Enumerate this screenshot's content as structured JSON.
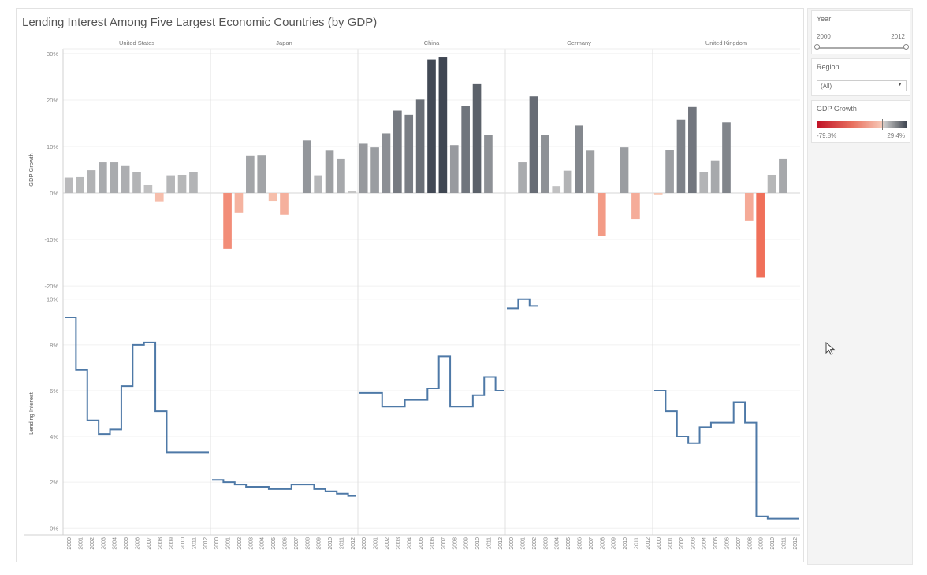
{
  "dashboard": {
    "title": "Lending Interest Among Five Largest Economic Countries (by GDP)"
  },
  "filters": {
    "year": {
      "label": "Year",
      "min_label": "2000",
      "max_label": "2012"
    },
    "region": {
      "label": "Region",
      "value": "(All)"
    },
    "gdp_legend": {
      "label": "GDP Growth",
      "min_label": "-79.8%",
      "max_label": "29.4%"
    }
  },
  "colors": {
    "line": "#4e79a7",
    "positive_low": "#c8c8c8",
    "positive_high": "#3f4652",
    "negative_low": "#f7c7b5",
    "negative_high": "#f0705a"
  },
  "chart_data": {
    "type": "bar",
    "title": "Lending Interest Among Five Largest Economic Countries (by GDP)",
    "columns": [
      "United States",
      "Japan",
      "China",
      "Germany",
      "United Kingdom"
    ],
    "years": [
      "2000",
      "2001",
      "2002",
      "2003",
      "2004",
      "2005",
      "2006",
      "2007",
      "2008",
      "2009",
      "2010",
      "2011",
      "2012"
    ],
    "gdp_growth": {
      "ylabel": "GDP Growth",
      "ylim": [
        -21,
        31
      ],
      "ticks": [
        30,
        20,
        10,
        0,
        -10,
        -20
      ],
      "tick_labels": [
        "30%",
        "20%",
        "10%",
        "0%",
        "-10%",
        "-20%"
      ],
      "series": [
        {
          "name": "United States",
          "values": [
            3.3,
            3.4,
            4.9,
            6.6,
            6.6,
            5.8,
            4.5,
            1.7,
            -1.8,
            3.8,
            3.9,
            4.5,
            null
          ]
        },
        {
          "name": "Japan",
          "values": [
            null,
            -12.0,
            -4.2,
            8.0,
            8.1,
            -1.7,
            -4.7,
            null,
            11.3,
            3.8,
            9.1,
            7.3,
            0.4
          ]
        },
        {
          "name": "China",
          "values": [
            10.6,
            9.8,
            12.8,
            17.7,
            16.8,
            20.1,
            28.7,
            29.3,
            10.3,
            18.8,
            23.4,
            12.4,
            null
          ]
        },
        {
          "name": "Germany",
          "values": [
            null,
            6.6,
            20.8,
            12.4,
            1.5,
            4.8,
            14.5,
            9.1,
            -9.2,
            null,
            9.8,
            -5.6,
            null
          ]
        },
        {
          "name": "United Kingdom",
          "values": [
            -0.3,
            9.2,
            15.8,
            18.5,
            4.5,
            7.0,
            15.2,
            null,
            -5.9,
            -18.2,
            3.9,
            7.3,
            null
          ]
        }
      ]
    },
    "lending_interest": {
      "type": "line",
      "ylabel": "Lending Interest",
      "ylim": [
        -0.3,
        10.3
      ],
      "ticks": [
        10,
        8,
        6,
        4,
        2,
        0
      ],
      "tick_labels": [
        "10%",
        "8%",
        "6%",
        "4%",
        "2%",
        "0%"
      ],
      "series": [
        {
          "name": "United States",
          "values": [
            9.2,
            6.9,
            4.7,
            4.1,
            4.3,
            6.2,
            8.0,
            8.1,
            5.1,
            3.3,
            3.3,
            3.3,
            3.3
          ]
        },
        {
          "name": "Japan",
          "values": [
            2.1,
            2.0,
            1.9,
            1.8,
            1.8,
            1.7,
            1.7,
            1.9,
            1.9,
            1.7,
            1.6,
            1.5,
            1.4
          ]
        },
        {
          "name": "China",
          "values": [
            5.9,
            5.9,
            5.3,
            5.3,
            5.6,
            5.6,
            6.1,
            7.5,
            5.3,
            5.3,
            5.8,
            6.6,
            6.0
          ]
        },
        {
          "name": "Germany",
          "values": [
            9.6,
            10.0,
            9.7,
            null,
            null,
            null,
            null,
            null,
            null,
            null,
            null,
            null,
            null
          ]
        },
        {
          "name": "United Kingdom",
          "values": [
            6.0,
            5.1,
            4.0,
            3.7,
            4.4,
            4.6,
            4.6,
            5.5,
            4.6,
            0.5,
            0.4,
            0.4,
            0.4
          ]
        }
      ]
    }
  }
}
